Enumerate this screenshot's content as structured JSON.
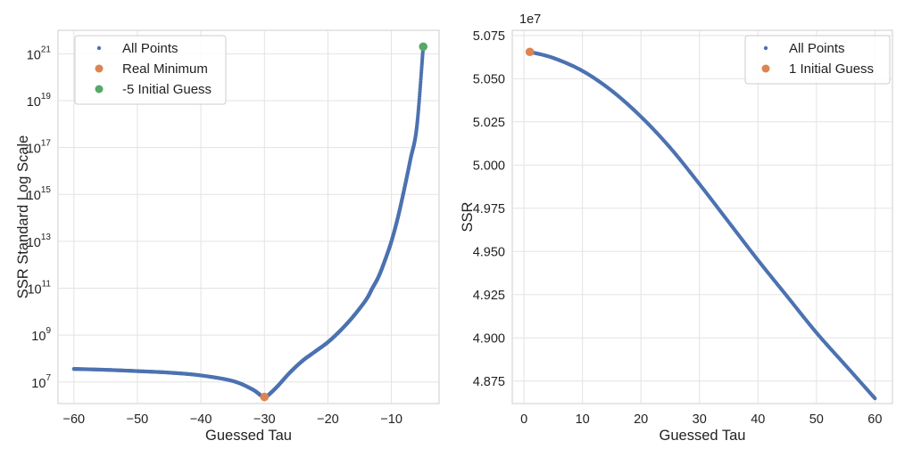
{
  "chart_data": [
    {
      "type": "scatter",
      "xlabel": "Guessed Tau",
      "ylabel": "SSR Standard Log Scale",
      "yscale": "log",
      "xlim": [
        -62.5,
        -2.5
      ],
      "ylim": [
        1200000.0,
        1e+22
      ],
      "xticks": [
        -60,
        -50,
        -40,
        -30,
        -20,
        -10
      ],
      "xtick_labels": [
        "−60",
        "−50",
        "−40",
        "−30",
        "−20",
        "−10"
      ],
      "ytick_bases": [
        "10",
        "10",
        "10",
        "10",
        "10",
        "10",
        "10",
        "10"
      ],
      "ytick_exps": [
        "7",
        "9",
        "11",
        "13",
        "15",
        "17",
        "19",
        "21"
      ],
      "yticks": [
        10000000.0,
        1000000000.0,
        100000000000.0,
        10000000000000.0,
        1000000000000000.0,
        1e+17,
        1e+19,
        1e+21
      ],
      "grid": true,
      "legend_position": "upper-left",
      "series": [
        {
          "name": "All Points",
          "color": "#4C72B0",
          "marker_size": "small",
          "x": [
            -60,
            -55,
            -50,
            -45,
            -40,
            -35,
            -32,
            -30.5,
            -30,
            -29.5,
            -28,
            -26,
            -24,
            -22,
            -20,
            -18,
            -16,
            -14,
            -13,
            -12,
            -11,
            -10,
            -9,
            -8,
            -7,
            -6,
            -5
          ],
          "y": [
            36000000.0,
            33000000.0,
            29000000.0,
            25000000.0,
            19000000.0,
            11000000.0,
            5000000.0,
            2600000.0,
            2300000.0,
            2600000.0,
            6300000.0,
            25000000.0,
            80000000.0,
            200000000.0,
            500000000.0,
            1600000000.0,
            6300000000.0,
            32000000000.0,
            100000000000.0,
            320000000000.0,
            1600000000000.0,
            10000000000000.0,
            100000000000000.0,
            1600000000000000.0,
            3.2e+16,
            7.9e+17,
            2e+21
          ]
        },
        {
          "name": "Real Minimum",
          "color": "#DD8452",
          "x": [
            -30
          ],
          "y": [
            2300000.0
          ]
        },
        {
          "name": "-5 Initial Guess",
          "color": "#55A868",
          "x": [
            -5
          ],
          "y": [
            2e+21
          ]
        }
      ]
    },
    {
      "type": "scatter",
      "xlabel": "Guessed Tau",
      "ylabel": "SSR",
      "offset_label": "1e7",
      "xlim": [
        -2,
        63
      ],
      "ylim": [
        4.862,
        5.078
      ],
      "xticks": [
        0,
        10,
        20,
        30,
        40,
        50,
        60
      ],
      "xtick_labels": [
        "0",
        "10",
        "20",
        "30",
        "40",
        "50",
        "60"
      ],
      "yticks": [
        4.875,
        4.9,
        4.925,
        4.95,
        4.975,
        5.0,
        5.025,
        5.05,
        5.075
      ],
      "ytick_labels": [
        "4.875",
        "4.900",
        "4.925",
        "4.950",
        "4.975",
        "5.000",
        "5.025",
        "5.050",
        "5.075"
      ],
      "grid": true,
      "legend_position": "upper-right",
      "series": [
        {
          "name": "All Points",
          "color": "#4C72B0",
          "marker_size": "small",
          "x": [
            1,
            5,
            10,
            15,
            20,
            25,
            30,
            35,
            40,
            45,
            50,
            55,
            60
          ],
          "y": [
            5.0655,
            5.062,
            5.0545,
            5.043,
            5.028,
            5.01,
            4.989,
            4.967,
            4.945,
            4.924,
            4.903,
            4.884,
            4.865
          ]
        },
        {
          "name": "1 Initial Guess",
          "color": "#DD8452",
          "x": [
            1
          ],
          "y": [
            5.0655
          ]
        }
      ]
    }
  ]
}
